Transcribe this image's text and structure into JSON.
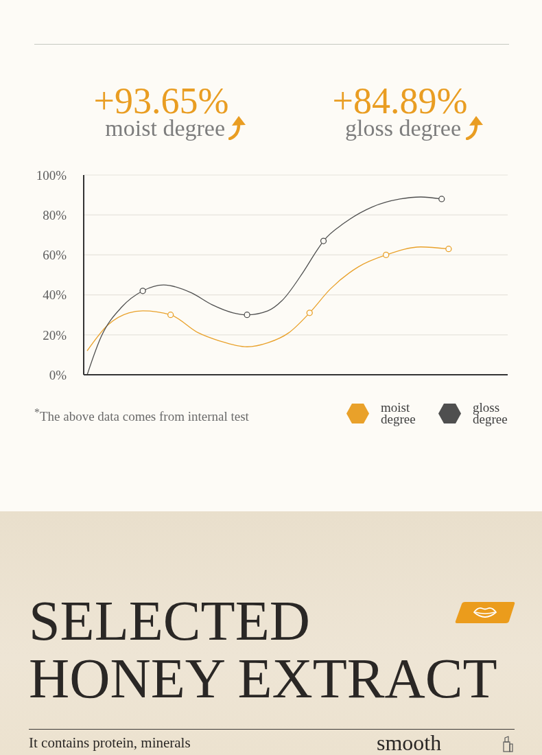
{
  "chart_data": {
    "type": "line",
    "categories": [
      null,
      null,
      null,
      null,
      null,
      null,
      null,
      null,
      null,
      null,
      null,
      null,
      null,
      null,
      null,
      null,
      null,
      null,
      null,
      null,
      null,
      null,
      null,
      null,
      null,
      null,
      null,
      null,
      null,
      null,
      null,
      null,
      null,
      null,
      null,
      null,
      null,
      null,
      null,
      null,
      null,
      null,
      null,
      null,
      null,
      null,
      null,
      null,
      null,
      null,
      null,
      null,
      null,
      null,
      null,
      null,
      null,
      null,
      null,
      null,
      null
    ],
    "series": [
      {
        "name": "moist degree",
        "color": "#e9a12a",
        "marker": "none",
        "values": [
          12,
          null,
          null,
          25,
          null,
          null,
          31,
          null,
          32,
          null,
          null,
          null,
          30,
          null,
          null,
          null,
          21,
          null,
          null,
          17,
          null,
          null,
          null,
          14,
          null,
          null,
          16,
          null,
          null,
          21,
          null,
          null,
          31,
          null,
          null,
          43,
          null,
          null,
          null,
          54,
          null,
          null,
          null,
          60,
          null,
          null,
          null,
          null,
          64,
          null,
          null,
          null,
          63,
          null,
          null,
          null,
          null,
          null,
          null,
          null,
          null
        ]
      },
      {
        "name": "gloss degree",
        "color": "#4f4f4f",
        "marker": "none",
        "values": [
          0,
          null,
          19,
          null,
          null,
          34,
          null,
          null,
          42,
          null,
          null,
          45,
          null,
          null,
          null,
          41,
          null,
          null,
          35,
          null,
          null,
          31,
          null,
          30,
          null,
          null,
          32,
          null,
          37,
          null,
          null,
          51,
          null,
          62,
          67,
          null,
          null,
          76,
          null,
          null,
          null,
          84,
          null,
          null,
          null,
          88,
          null,
          null,
          89,
          null,
          null,
          88,
          null,
          null,
          null,
          null,
          null,
          null,
          null,
          null,
          null
        ]
      },
      {
        "type": "scatter",
        "color": "#e9a12a",
        "values": [
          null,
          null,
          null,
          null,
          null,
          null,
          null,
          null,
          null,
          null,
          null,
          null,
          30,
          null,
          null,
          null,
          null,
          null,
          null,
          null,
          null,
          null,
          null,
          null,
          null,
          null,
          null,
          null,
          null,
          null,
          null,
          null,
          31,
          null,
          null,
          null,
          null,
          null,
          null,
          null,
          null,
          null,
          null,
          60,
          null,
          null,
          null,
          null,
          null,
          null,
          null,
          null,
          63,
          null,
          null,
          null,
          null,
          null,
          null,
          null,
          null
        ]
      },
      {
        "type": "scatter",
        "color": "#4f4f4f",
        "values": [
          null,
          null,
          null,
          null,
          null,
          null,
          null,
          null,
          42,
          null,
          null,
          null,
          null,
          null,
          null,
          null,
          null,
          null,
          null,
          null,
          null,
          null,
          null,
          30,
          null,
          null,
          null,
          null,
          null,
          null,
          null,
          null,
          null,
          null,
          67,
          null,
          null,
          null,
          null,
          null,
          null,
          null,
          null,
          null,
          null,
          null,
          null,
          null,
          null,
          null,
          null,
          88,
          null,
          null,
          null,
          null,
          null,
          null,
          null,
          null,
          null
        ]
      }
    ],
    "ylim": [
      0,
      100
    ],
    "yticks": [
      {
        "value": 0,
        "label": "0%"
      },
      {
        "value": 20,
        "label": "20%"
      },
      {
        "value": 40,
        "label": "40%"
      },
      {
        "value": 60,
        "label": "60%"
      },
      {
        "value": 80,
        "label": "80%"
      },
      {
        "value": 100,
        "label": "100%"
      }
    ],
    "grid": "y",
    "legend": "bottom right",
    "marker": "circle",
    "tick_labels": "y",
    "annotations": [
      "+93.65%",
      "moist degree",
      "+84.89%",
      "gloss degree",
      "$^{*}$The above data comes from internal test",
      "SELECTED HONEY EXTRACT",
      "It contains protein, minerals",
      "smooth"
    ]
  }
}
